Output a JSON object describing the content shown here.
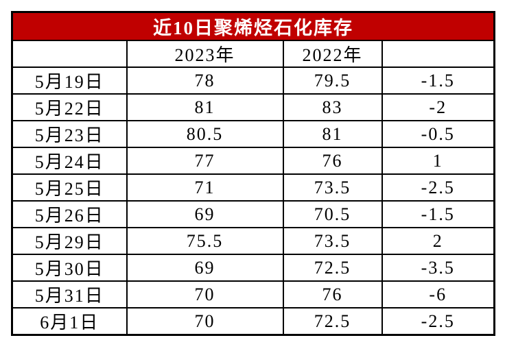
{
  "table": {
    "title": "近10日聚烯烃石化库存",
    "header": [
      "2023年",
      "2022年"
    ],
    "rows": [
      [
        "5月19日",
        "78",
        "79.5",
        "-1.5"
      ],
      [
        "5月22日",
        "81",
        "83",
        "-2"
      ],
      [
        "5月23日",
        "80.5",
        "81",
        "-0.5"
      ],
      [
        "5月24日",
        "77",
        "76",
        "1"
      ],
      [
        "5月25日",
        "71",
        "73.5",
        "-2.5"
      ],
      [
        "5月26日",
        "69",
        "70.5",
        "-1.5"
      ],
      [
        "5月29日",
        "75.5",
        "73.5",
        "2"
      ],
      [
        "5月30日",
        "69",
        "72.5",
        "-3.5"
      ],
      [
        "5月31日",
        "70",
        "76",
        "-6"
      ],
      [
        "6月1日",
        "70",
        "72.5",
        "-2.5"
      ]
    ]
  }
}
